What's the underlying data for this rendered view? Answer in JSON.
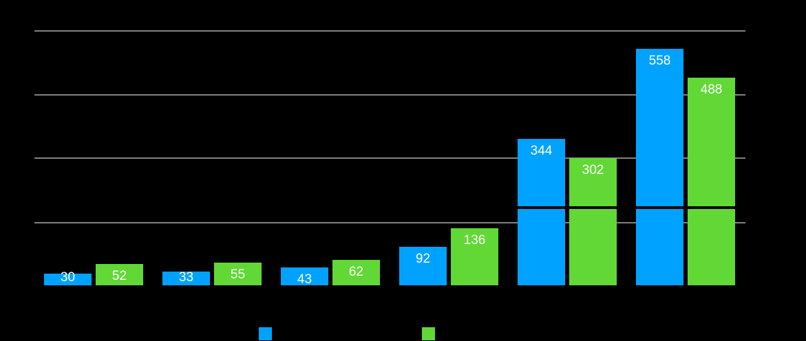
{
  "chart_data": {
    "type": "bar",
    "title": "",
    "xlabel": "",
    "ylabel": "",
    "categories": [
      "",
      "",
      "",
      "",
      "",
      ""
    ],
    "series": [
      {
        "name": "",
        "color": "#00a2ff",
        "values": [
          30,
          33,
          43,
          92,
          344,
          558
        ]
      },
      {
        "name": "",
        "color": "#61d836",
        "values": [
          52,
          55,
          62,
          136,
          302,
          488
        ]
      }
    ],
    "ylim": [
      0,
      600
    ],
    "grid": true,
    "legend": "bottom-center",
    "axis_break": true,
    "data_labels": true
  }
}
